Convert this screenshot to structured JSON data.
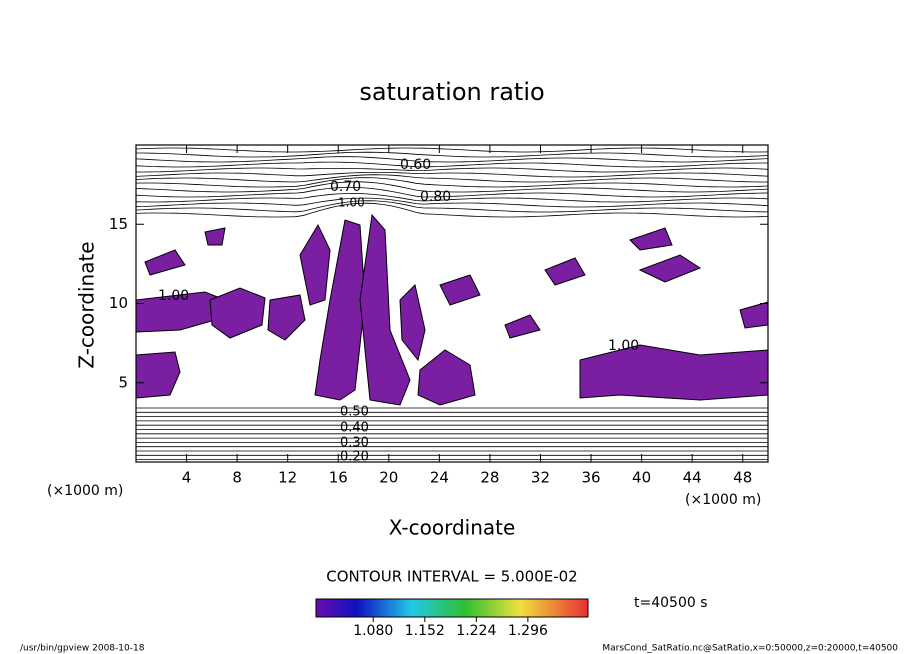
{
  "chart_data": {
    "type": "contour",
    "title": "saturation ratio",
    "x_label": "X-coordinate",
    "y_label": "Z-coordinate",
    "x_unit": "(×1000 m)",
    "y_unit": "(×1000 m)",
    "xlim": [
      0,
      50
    ],
    "xticks": [
      4,
      8,
      12,
      16,
      20,
      24,
      28,
      32,
      36,
      40,
      44,
      48
    ],
    "ylim": [
      0,
      20
    ],
    "yticks": [
      5,
      10,
      15
    ],
    "contour_labels": [
      "0.60",
      "0.70",
      "0.80",
      "1.00",
      "1.00",
      "1.00",
      "0.50",
      "0.40",
      "0.30",
      "0.20"
    ],
    "contour_interval": "CONTOUR INTERVAL = 5.000E-02",
    "colorbar": {
      "clim": [
        1.0,
        1.38
      ],
      "ticks": [
        {
          "value": 1.08,
          "label": "1.080"
        },
        {
          "value": 1.152,
          "label": "1.152"
        },
        {
          "value": 1.224,
          "label": "1.224"
        },
        {
          "value": 1.296,
          "label": "1.296"
        }
      ]
    },
    "time_label": "t=40500 s",
    "footer_left": "/usr/bin/gpview  2008-10-18",
    "footer_right": "MarsCond_SatRatio.nc@SatRatio,x=0:50000,z=0:20000,t=40500"
  }
}
